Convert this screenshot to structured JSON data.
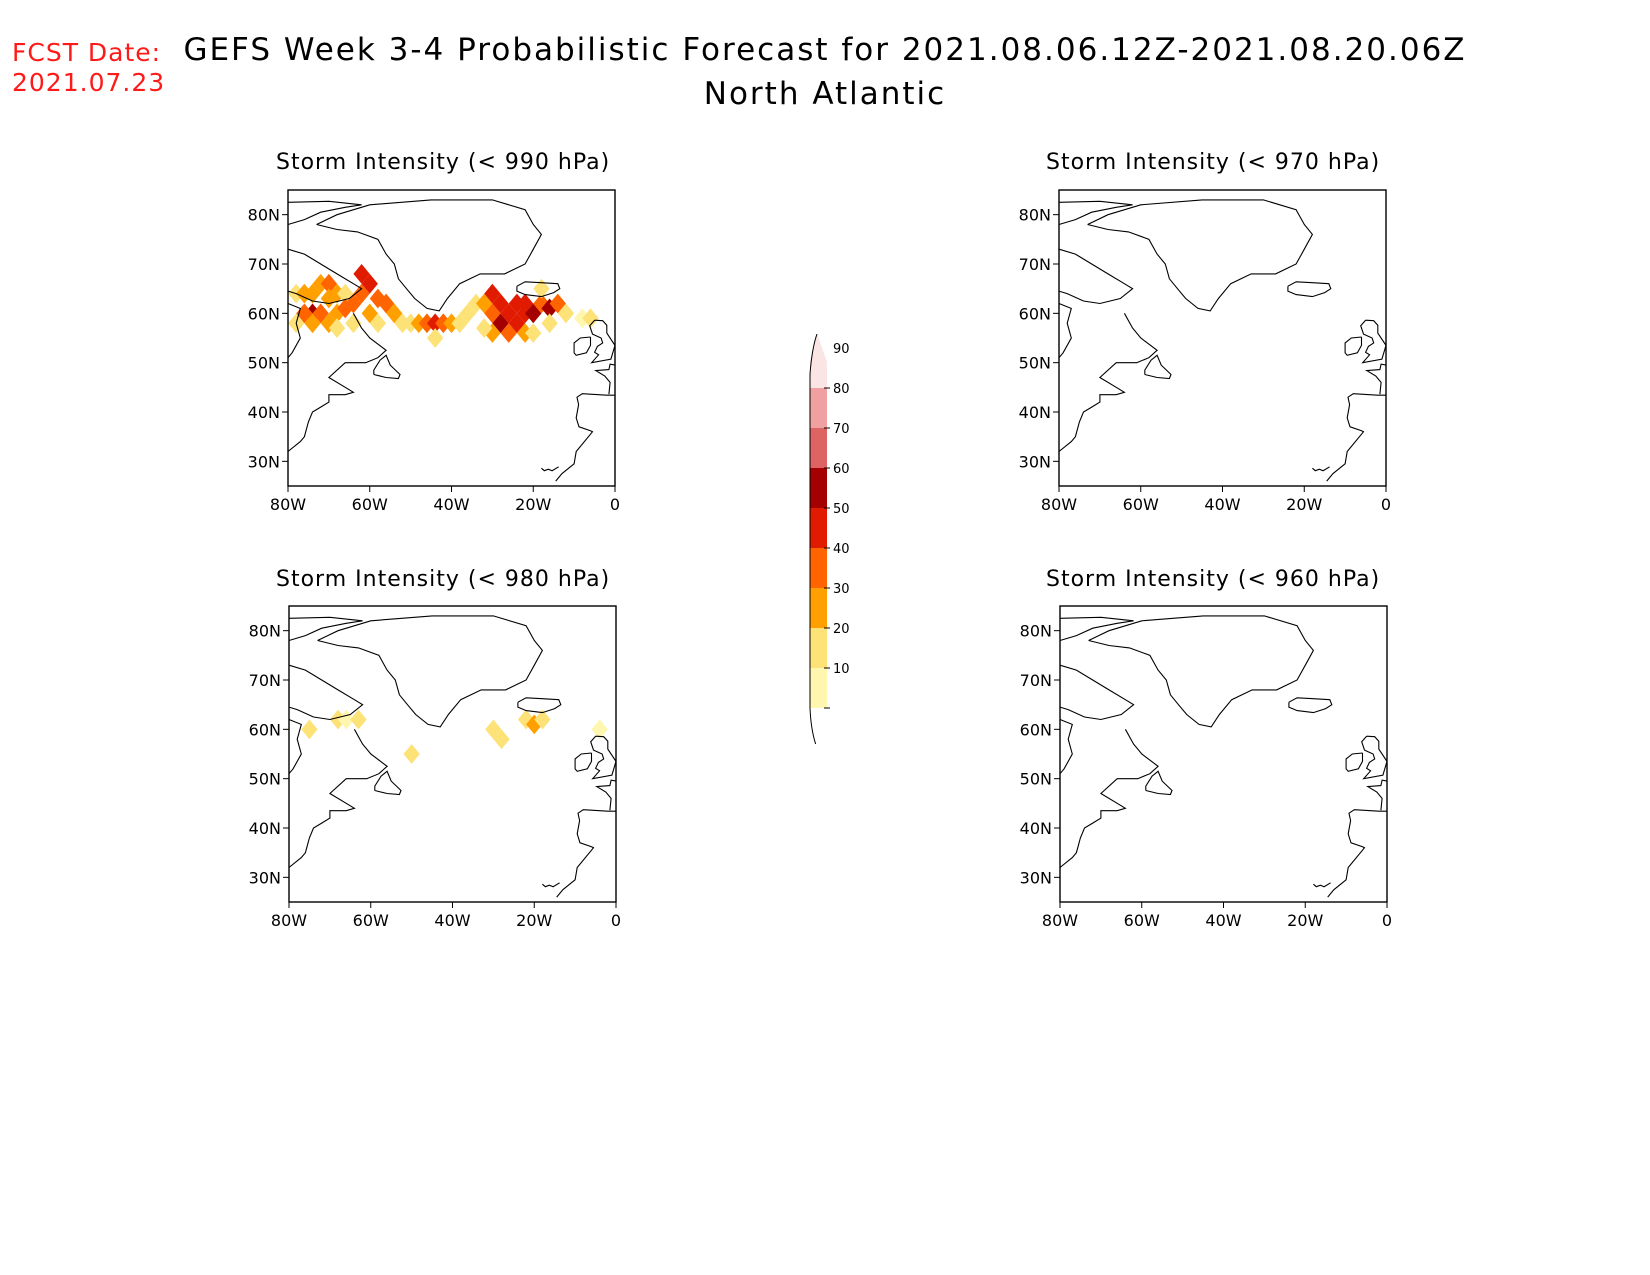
{
  "header": {
    "fcst_label": "FCST Date:",
    "fcst_date": "2021.07.23",
    "title": "GEFS Week 3-4 Probabilistic Forecast for 2021.08.06.12Z-2021.08.20.06Z",
    "subtitle": "North Atlantic"
  },
  "axes": {
    "lat_labels": [
      "80N",
      "70N",
      "60N",
      "50N",
      "40N",
      "30N"
    ],
    "lat_values": [
      80,
      70,
      60,
      50,
      40,
      30
    ],
    "lon_labels": [
      "80W",
      "60W",
      "40W",
      "20W",
      "0"
    ],
    "lon_values": [
      -80,
      -60,
      -40,
      -20,
      0
    ],
    "lat_range": [
      25,
      85
    ],
    "lon_range": [
      -80,
      0
    ]
  },
  "colorbar": {
    "levels": [
      "10",
      "20",
      "30",
      "40",
      "50",
      "60",
      "70",
      "80",
      "90"
    ],
    "colors": [
      "#fff6b0",
      "#fde278",
      "#ffa000",
      "#ff6400",
      "#e11b00",
      "#a50000",
      "#de6463",
      "#f0a0a0",
      "#fbe4e4"
    ]
  },
  "chart_data": [
    {
      "type": "heatmap",
      "title": "Storm Intensity (< 990 hPa)",
      "cells": [
        {
          "lon": -78,
          "lat": 64,
          "p": 20
        },
        {
          "lon": -76,
          "lat": 64,
          "p": 30
        },
        {
          "lon": -74,
          "lat": 64,
          "p": 30
        },
        {
          "lon": -72,
          "lat": 66,
          "p": 30
        },
        {
          "lon": -70,
          "lat": 66,
          "p": 40
        },
        {
          "lon": -70,
          "lat": 63,
          "p": 30
        },
        {
          "lon": -68,
          "lat": 64,
          "p": 30
        },
        {
          "lon": -66,
          "lat": 64,
          "p": 20
        },
        {
          "lon": -74,
          "lat": 60,
          "p": 60
        },
        {
          "lon": -76,
          "lat": 60,
          "p": 40
        },
        {
          "lon": -72,
          "lat": 60,
          "p": 40
        },
        {
          "lon": -74,
          "lat": 58,
          "p": 30
        },
        {
          "lon": -78,
          "lat": 58,
          "p": 20
        },
        {
          "lon": -70,
          "lat": 58,
          "p": 30
        },
        {
          "lon": -68,
          "lat": 60,
          "p": 30
        },
        {
          "lon": -66,
          "lat": 61,
          "p": 40
        },
        {
          "lon": -64,
          "lat": 62,
          "p": 40
        },
        {
          "lon": -62,
          "lat": 64,
          "p": 40
        },
        {
          "lon": -60,
          "lat": 66,
          "p": 50
        },
        {
          "lon": -62,
          "lat": 68,
          "p": 50
        },
        {
          "lon": -58,
          "lat": 63,
          "p": 40
        },
        {
          "lon": -56,
          "lat": 62,
          "p": 40
        },
        {
          "lon": -54,
          "lat": 60,
          "p": 30
        },
        {
          "lon": -60,
          "lat": 60,
          "p": 30
        },
        {
          "lon": -64,
          "lat": 58,
          "p": 20
        },
        {
          "lon": -68,
          "lat": 57,
          "p": 20
        },
        {
          "lon": -58,
          "lat": 58,
          "p": 20
        },
        {
          "lon": -52,
          "lat": 58,
          "p": 20
        },
        {
          "lon": -50,
          "lat": 58,
          "p": 20
        },
        {
          "lon": -48,
          "lat": 58,
          "p": 30
        },
        {
          "lon": -46,
          "lat": 58,
          "p": 40
        },
        {
          "lon": -44,
          "lat": 58,
          "p": 50
        },
        {
          "lon": -42,
          "lat": 58,
          "p": 40
        },
        {
          "lon": -40,
          "lat": 58,
          "p": 30
        },
        {
          "lon": -44,
          "lat": 55,
          "p": 20
        },
        {
          "lon": -38,
          "lat": 58,
          "p": 20
        },
        {
          "lon": -36,
          "lat": 60,
          "p": 20
        },
        {
          "lon": -34,
          "lat": 62,
          "p": 20
        },
        {
          "lon": -32,
          "lat": 62,
          "p": 30
        },
        {
          "lon": -30,
          "lat": 64,
          "p": 50
        },
        {
          "lon": -30,
          "lat": 60,
          "p": 40
        },
        {
          "lon": -28,
          "lat": 62,
          "p": 50
        },
        {
          "lon": -28,
          "lat": 58,
          "p": 60
        },
        {
          "lon": -26,
          "lat": 60,
          "p": 50
        },
        {
          "lon": -26,
          "lat": 56,
          "p": 40
        },
        {
          "lon": -24,
          "lat": 62,
          "p": 50
        },
        {
          "lon": -24,
          "lat": 58,
          "p": 50
        },
        {
          "lon": -22,
          "lat": 62,
          "p": 50
        },
        {
          "lon": -22,
          "lat": 60,
          "p": 50
        },
        {
          "lon": -20,
          "lat": 60,
          "p": 60
        },
        {
          "lon": -18,
          "lat": 62,
          "p": 40
        },
        {
          "lon": -16,
          "lat": 61,
          "p": 60
        },
        {
          "lon": -14,
          "lat": 62,
          "p": 40
        },
        {
          "lon": -16,
          "lat": 58,
          "p": 20
        },
        {
          "lon": -22,
          "lat": 56,
          "p": 30
        },
        {
          "lon": -30,
          "lat": 56,
          "p": 30
        },
        {
          "lon": -32,
          "lat": 57,
          "p": 20
        },
        {
          "lon": -20,
          "lat": 56,
          "p": 20
        },
        {
          "lon": -18,
          "lat": 65,
          "p": 20
        },
        {
          "lon": -12,
          "lat": 60,
          "p": 20
        },
        {
          "lon": -8,
          "lat": 59,
          "p": 10
        },
        {
          "lon": -6,
          "lat": 59,
          "p": 20
        }
      ]
    },
    {
      "type": "heatmap",
      "title": "Storm Intensity (< 970 hPa)",
      "cells": []
    },
    {
      "type": "heatmap",
      "title": "Storm Intensity (< 980 hPa)",
      "cells": [
        {
          "lon": -75,
          "lat": 60,
          "p": 20
        },
        {
          "lon": -68,
          "lat": 62,
          "p": 20
        },
        {
          "lon": -66,
          "lat": 62,
          "p": 10
        },
        {
          "lon": -63,
          "lat": 62,
          "p": 20
        },
        {
          "lon": -50,
          "lat": 55,
          "p": 20
        },
        {
          "lon": -30,
          "lat": 60,
          "p": 20
        },
        {
          "lon": -28,
          "lat": 58,
          "p": 20
        },
        {
          "lon": -22,
          "lat": 62,
          "p": 20
        },
        {
          "lon": -20,
          "lat": 61,
          "p": 30
        },
        {
          "lon": -18,
          "lat": 62,
          "p": 20
        },
        {
          "lon": -4,
          "lat": 60,
          "p": 10
        }
      ]
    },
    {
      "type": "heatmap",
      "title": "Storm Intensity (< 960 hPa)",
      "cells": []
    }
  ]
}
